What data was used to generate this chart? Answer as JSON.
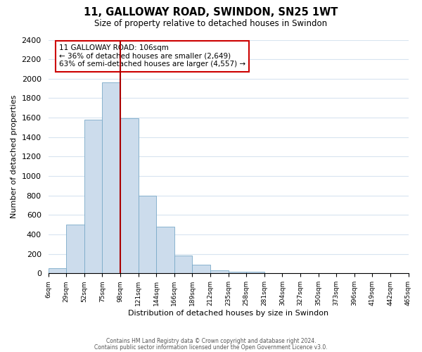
{
  "title": "11, GALLOWAY ROAD, SWINDON, SN25 1WT",
  "subtitle": "Size of property relative to detached houses in Swindon",
  "xlabel": "Distribution of detached houses by size in Swindon",
  "ylabel": "Number of detached properties",
  "footer_line1": "Contains HM Land Registry data © Crown copyright and database right 2024.",
  "footer_line2": "Contains public sector information licensed under the Open Government Licence v3.0.",
  "bin_labels": [
    "6sqm",
    "29sqm",
    "52sqm",
    "75sqm",
    "98sqm",
    "121sqm",
    "144sqm",
    "166sqm",
    "189sqm",
    "212sqm",
    "235sqm",
    "258sqm",
    "281sqm",
    "304sqm",
    "327sqm",
    "350sqm",
    "373sqm",
    "396sqm",
    "419sqm",
    "442sqm",
    "465sqm"
  ],
  "bar_heights": [
    50,
    500,
    1580,
    1960,
    1590,
    800,
    480,
    185,
    90,
    30,
    20,
    15,
    0,
    5,
    0,
    0,
    0,
    0,
    0,
    0
  ],
  "bar_color": "#ccdcec",
  "bar_edge_color": "#7aaac8",
  "highlight_bar_index": 4,
  "highlight_line_color": "#aa0000",
  "annotation_title": "11 GALLOWAY ROAD: 106sqm",
  "annotation_line1": "← 36% of detached houses are smaller (2,649)",
  "annotation_line2": "63% of semi-detached houses are larger (4,557) →",
  "annotation_box_color": "#ffffff",
  "annotation_box_edge": "#cc0000",
  "ylim": [
    0,
    2400
  ],
  "yticks": [
    0,
    200,
    400,
    600,
    800,
    1000,
    1200,
    1400,
    1600,
    1800,
    2000,
    2200,
    2400
  ],
  "background_color": "#ffffff",
  "grid_color": "#d8e4f0"
}
